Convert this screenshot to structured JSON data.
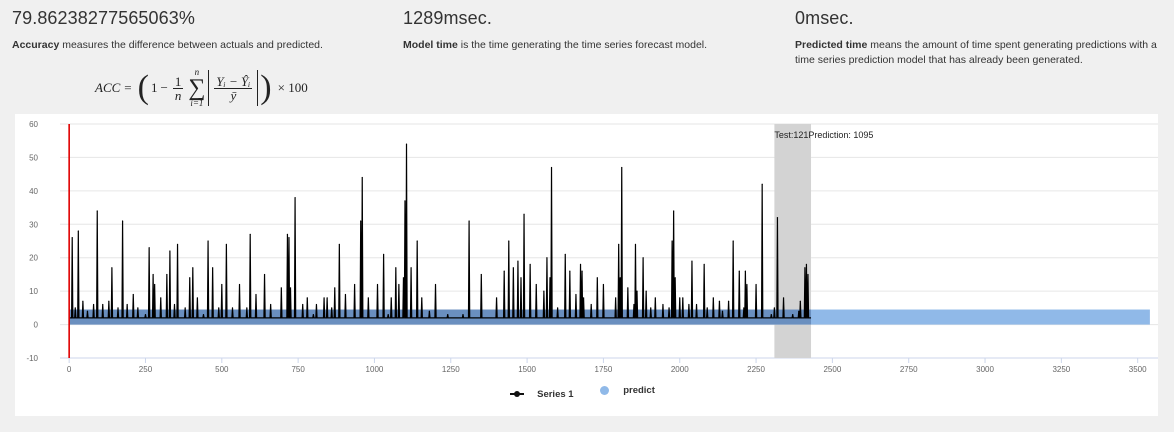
{
  "metrics": {
    "accuracy": {
      "value": "79.86238277565063%",
      "term": "Accuracy",
      "desc": " measures the difference between actuals and predicted."
    },
    "model_time": {
      "value": "1289msec.",
      "term": "Model time",
      "desc": " is the time generating the time series forecast model."
    },
    "predicted_time": {
      "value": "0msec.",
      "term": "Predicted time",
      "desc": " means the amount of time spent generating predictions with a time series prediction model that has already been generated."
    }
  },
  "formula": {
    "lhs": "ACC",
    "eq": "=",
    "one": "1",
    "minus": "−",
    "frac_num": "1",
    "frac_den": "n",
    "sum_top": "n",
    "sum_bot": "i=1",
    "inner_num": "Yᵢ − Ŷᵢ",
    "inner_den": "ȳ",
    "times": "× 100"
  },
  "chart_data": {
    "type": "line",
    "series": [
      {
        "name": "Series 1",
        "color": "#000000",
        "x_range": [
          0,
          2430
        ],
        "baseline": 2,
        "peaks": [
          [
            10,
            26
          ],
          [
            20,
            5
          ],
          [
            30,
            28
          ],
          [
            45,
            7
          ],
          [
            60,
            4
          ],
          [
            80,
            6
          ],
          [
            92,
            34
          ],
          [
            110,
            6
          ],
          [
            130,
            7
          ],
          [
            140,
            17
          ],
          [
            160,
            5
          ],
          [
            175,
            31
          ],
          [
            190,
            6
          ],
          [
            210,
            9
          ],
          [
            225,
            5
          ],
          [
            250,
            3
          ],
          [
            262,
            23
          ],
          [
            275,
            15
          ],
          [
            280,
            12
          ],
          [
            300,
            8
          ],
          [
            320,
            15
          ],
          [
            330,
            22
          ],
          [
            345,
            6
          ],
          [
            355,
            24
          ],
          [
            380,
            5
          ],
          [
            395,
            14
          ],
          [
            405,
            17
          ],
          [
            420,
            8
          ],
          [
            440,
            3
          ],
          [
            455,
            25
          ],
          [
            470,
            17
          ],
          [
            490,
            5
          ],
          [
            500,
            12
          ],
          [
            515,
            24
          ],
          [
            535,
            5
          ],
          [
            558,
            12
          ],
          [
            582,
            5
          ],
          [
            593,
            27
          ],
          [
            612,
            9
          ],
          [
            640,
            15
          ],
          [
            660,
            6
          ],
          [
            695,
            11
          ],
          [
            715,
            27
          ],
          [
            720,
            26
          ],
          [
            725,
            11
          ],
          [
            740,
            38
          ],
          [
            765,
            6
          ],
          [
            780,
            8
          ],
          [
            800,
            3
          ],
          [
            810,
            6
          ],
          [
            835,
            8
          ],
          [
            845,
            8
          ],
          [
            860,
            5
          ],
          [
            870,
            11
          ],
          [
            885,
            24
          ],
          [
            905,
            9
          ],
          [
            935,
            12
          ],
          [
            955,
            31
          ],
          [
            960,
            44
          ],
          [
            980,
            8
          ],
          [
            1010,
            12
          ],
          [
            1030,
            21
          ],
          [
            1045,
            3
          ],
          [
            1055,
            8
          ],
          [
            1070,
            17
          ],
          [
            1080,
            12
          ],
          [
            1095,
            14
          ],
          [
            1100,
            37
          ],
          [
            1105,
            54
          ],
          [
            1120,
            17
          ],
          [
            1140,
            25
          ],
          [
            1155,
            8
          ],
          [
            1180,
            4
          ],
          [
            1200,
            12
          ],
          [
            1240,
            3
          ],
          [
            1290,
            3
          ],
          [
            1310,
            31
          ],
          [
            1350,
            15
          ],
          [
            1400,
            8
          ],
          [
            1425,
            16
          ],
          [
            1440,
            25
          ],
          [
            1455,
            17
          ],
          [
            1470,
            19
          ],
          [
            1480,
            14
          ],
          [
            1490,
            33
          ],
          [
            1510,
            18
          ],
          [
            1530,
            12
          ],
          [
            1555,
            10
          ],
          [
            1565,
            20
          ],
          [
            1575,
            14
          ],
          [
            1580,
            47
          ],
          [
            1600,
            5
          ],
          [
            1625,
            21
          ],
          [
            1640,
            16
          ],
          [
            1660,
            9
          ],
          [
            1675,
            18
          ],
          [
            1680,
            16
          ],
          [
            1685,
            8
          ],
          [
            1710,
            6
          ],
          [
            1730,
            14
          ],
          [
            1750,
            12
          ],
          [
            1790,
            8
          ],
          [
            1800,
            24
          ],
          [
            1805,
            14
          ],
          [
            1810,
            47
          ],
          [
            1830,
            11
          ],
          [
            1850,
            6
          ],
          [
            1855,
            24
          ],
          [
            1860,
            10
          ],
          [
            1880,
            20
          ],
          [
            1890,
            10
          ],
          [
            1905,
            5
          ],
          [
            1920,
            8
          ],
          [
            1945,
            6
          ],
          [
            1965,
            5
          ],
          [
            1975,
            25
          ],
          [
            1980,
            34
          ],
          [
            1985,
            14
          ],
          [
            2000,
            8
          ],
          [
            2010,
            8
          ],
          [
            2030,
            6
          ],
          [
            2040,
            19
          ],
          [
            2055,
            6
          ],
          [
            2080,
            18
          ],
          [
            2090,
            5
          ],
          [
            2110,
            8
          ],
          [
            2130,
            7
          ],
          [
            2140,
            4
          ],
          [
            2160,
            7
          ],
          [
            2175,
            25
          ],
          [
            2195,
            16
          ],
          [
            2210,
            5
          ],
          [
            2215,
            16
          ],
          [
            2220,
            12
          ],
          [
            2250,
            12
          ],
          [
            2270,
            42
          ],
          [
            2300,
            3
          ],
          [
            2310,
            5
          ],
          [
            2320,
            32
          ],
          [
            2340,
            8
          ],
          [
            2370,
            3
          ],
          [
            2390,
            4
          ],
          [
            2395,
            7
          ],
          [
            2410,
            17
          ],
          [
            2415,
            18
          ],
          [
            2420,
            15
          ]
        ]
      },
      {
        "name": "predict",
        "color": "#90b9e8",
        "x_range": [
          0,
          3540
        ],
        "band": [
          0,
          4.5
        ]
      }
    ],
    "annotation": {
      "range": [
        2310,
        2430
      ],
      "text": "Test:121Prediction: 1095"
    },
    "marker_x": 0,
    "x_ticks": [
      0,
      250,
      500,
      750,
      1000,
      1250,
      1500,
      1750,
      2000,
      2250,
      2500,
      2750,
      3000,
      3250,
      3500
    ],
    "y_ticks": [
      -10,
      0,
      10,
      20,
      30,
      40,
      50,
      60
    ],
    "xlim": [
      -30,
      3560
    ],
    "ylim": [
      -10,
      60
    ],
    "grid": true,
    "legend": "bottom"
  }
}
